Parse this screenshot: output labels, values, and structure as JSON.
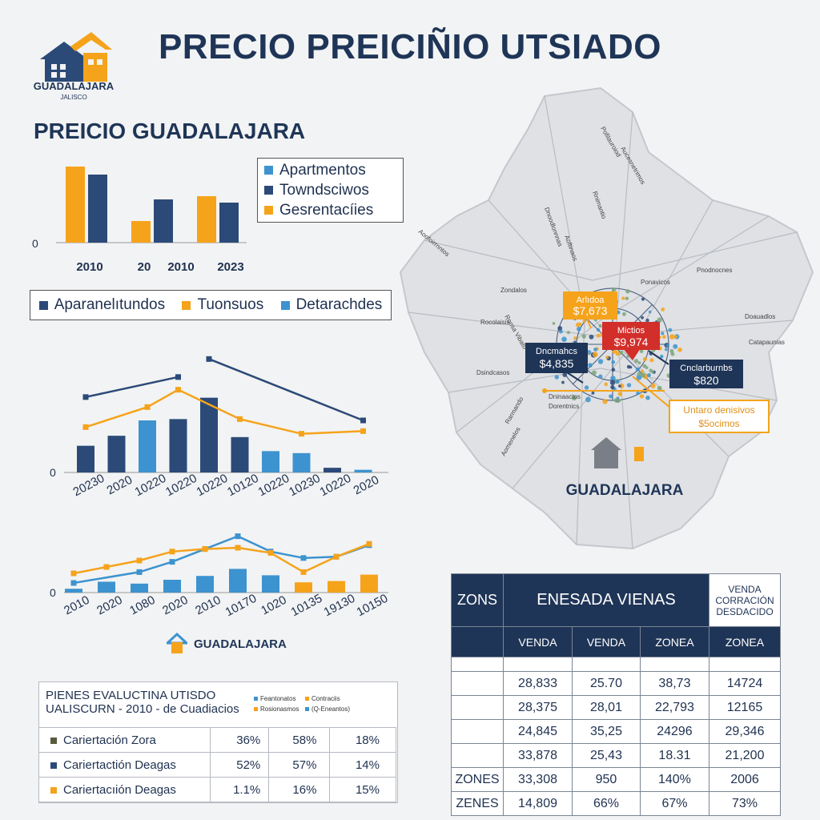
{
  "header": {
    "title": "PRECIO PREICIÑIO UTSIADO"
  },
  "logo": {
    "name": "GUADALAJARA",
    "sub": "JALISCO"
  },
  "subtitle": "PREICIO GUADALAJARA",
  "colors": {
    "navy": "#2b4a78",
    "orange": "#f5a31b",
    "lightblue": "#3d93cf",
    "red": "#d22e2a"
  },
  "legend1": [
    {
      "label": "Apartmentos",
      "color": "#3d93cf"
    },
    {
      "label": "Towndsciwos",
      "color": "#2b4a78"
    },
    {
      "label": "Gesrentacíies",
      "color": "#f5a31b"
    }
  ],
  "legend2": [
    {
      "label": "Aparanelıtundos",
      "color": "#2b4a78"
    },
    {
      "label": "Tuonsuos",
      "color": "#f5a31b"
    },
    {
      "label": "Detarachdes",
      "color": "#3d93cf"
    }
  ],
  "chart_data": [
    {
      "type": "bar",
      "categories": [
        "2010",
        "20",
        "2010",
        "2023"
      ],
      "series": [
        {
          "name": "Gesrentacíies",
          "color": "#f5a31b",
          "values": [
            95,
            27,
            58,
            null
          ]
        },
        {
          "name": "Towndsciwos",
          "color": "#2b4a78",
          "values": [
            85,
            54,
            50,
            null
          ]
        }
      ],
      "ytick": "0",
      "ylim": [
        0,
        100
      ]
    },
    {
      "type": "bar+line",
      "categories": [
        "20230",
        "2020",
        "10220",
        "10220",
        "10220",
        "10120",
        "10220",
        "10230",
        "10220",
        "2020"
      ],
      "bars": [
        {
          "v": 40,
          "c": "navy"
        },
        {
          "v": 55,
          "c": "navy"
        },
        {
          "v": 78,
          "c": "lightblue"
        },
        {
          "v": 80,
          "c": "navy"
        },
        {
          "v": 112,
          "c": "navy"
        },
        {
          "v": 53,
          "c": "navy"
        },
        {
          "v": 32,
          "c": "lightblue"
        },
        {
          "v": 29,
          "c": "lightblue"
        },
        {
          "v": 7,
          "c": "navy"
        },
        {
          "v": 4,
          "c": "lightblue"
        }
      ],
      "series": [
        {
          "name": "Aparanelıtundos",
          "color": "#2b4a78",
          "points": [
            [
              0,
              113
            ],
            [
              3,
              143
            ]
          ]
        },
        {
          "name": "Aparanelıtundos",
          "color": "#2b4a78",
          "points": [
            [
              4,
              170
            ],
            [
              9,
              78
            ]
          ]
        },
        {
          "name": "Tuonsuos",
          "color": "#f5a31b",
          "points": [
            [
              0,
              68
            ],
            [
              2,
              98
            ],
            [
              3,
              124
            ],
            [
              5,
              80
            ],
            [
              7,
              58
            ],
            [
              9,
              62
            ]
          ]
        }
      ],
      "ytick": "0",
      "ylim": [
        0,
        180
      ]
    },
    {
      "type": "bar+line",
      "categories": [
        "2010",
        "2020",
        "1080",
        "2020",
        "2010",
        "10170",
        "1020",
        "10135",
        "19130",
        "10150"
      ],
      "bars": [
        {
          "v": 6,
          "c": "lightblue"
        },
        {
          "v": 17,
          "c": "lightblue"
        },
        {
          "v": 14,
          "c": "lightblue"
        },
        {
          "v": 20,
          "c": "lightblue"
        },
        {
          "v": 26,
          "c": "lightblue"
        },
        {
          "v": 37,
          "c": "lightblue"
        },
        {
          "v": 27,
          "c": "lightblue"
        },
        {
          "v": 16,
          "c": "orange"
        },
        {
          "v": 18,
          "c": "orange"
        },
        {
          "v": 28,
          "c": "orange"
        }
      ],
      "series": [
        {
          "name": "Detarachdes",
          "color": "#3d93cf",
          "points": [
            [
              0,
              15
            ],
            [
              2,
              32
            ],
            [
              3,
              48
            ],
            [
              4,
              68
            ],
            [
              5,
              88
            ],
            [
              6,
              64
            ],
            [
              7,
              54
            ],
            [
              8,
              56
            ],
            [
              9,
              74
            ]
          ]
        },
        {
          "name": "Tuonsuos",
          "color": "#f5a31b",
          "points": [
            [
              0,
              30
            ],
            [
              1,
              40
            ],
            [
              2,
              50
            ],
            [
              3,
              64
            ],
            [
              4,
              68
            ],
            [
              5,
              70
            ],
            [
              6,
              62
            ],
            [
              7,
              32
            ],
            [
              8,
              56
            ],
            [
              9,
              76
            ]
          ]
        }
      ],
      "ytick": "0",
      "ylim": [
        0,
        100
      ]
    },
    {
      "type": "table",
      "title": "PIENES EVALUCTINA UTISDO",
      "subtitle": "UALISCURN - 2010 - de Cuadiacios",
      "mini_legend": [
        "Feantonatos",
        "Contraciis",
        "Rosionasmos",
        "(Q-Eneantos)"
      ],
      "rows": [
        {
          "label": "Cariertación Zora",
          "values": [
            "36%",
            "58%",
            "18%"
          ]
        },
        {
          "label": "Cariertactión Deagas",
          "values": [
            "52%",
            "57%",
            "14%"
          ]
        },
        {
          "label": "Cariertacıión Deagas",
          "values": [
            "1.1%",
            "16%",
            "15%"
          ]
        }
      ]
    },
    {
      "type": "table",
      "headers": [
        "ZONS",
        "ENESADA VIENAS",
        "VENDA CORRACIÓN DESDACIDO"
      ],
      "subheaders": [
        "",
        "VENDA",
        "VENDA",
        "ZONEA",
        "ZONEA"
      ],
      "rows": [
        [
          "",
          "",
          "",
          "",
          ""
        ],
        [
          "",
          "28,833",
          "25.70",
          "38,73",
          "14724"
        ],
        [
          "",
          "28,375",
          "28,01",
          "22,793",
          "12165"
        ],
        [
          "",
          "24,845",
          "35,25",
          "24296",
          "29,346"
        ],
        [
          "",
          "33,878",
          "25,43",
          "18.31",
          "21,200"
        ],
        [
          "ZONES",
          "33,308",
          "950",
          "140%",
          "2006"
        ],
        [
          "ZENES",
          "14,809",
          "66%",
          "67%",
          "73%"
        ]
      ]
    }
  ],
  "map": {
    "city_label": "GUADALAJARA",
    "callouts": [
      {
        "name": "Arlıdoa",
        "price": "$7,673"
      },
      {
        "name": "Mictios",
        "price": "$9,974"
      },
      {
        "name": "Dncmahcs",
        "price": "$4,835"
      },
      {
        "name": "Cnclarburnbs",
        "price": "$820"
      },
      {
        "name": "Untaro denisivos",
        "price": "$5ocimos"
      }
    ],
    "labels": [
      "Pofilauroiod",
      "Aucesnetrimos",
      "Rnimantio",
      "Aoftinaos",
      "Aoofoirrnntos",
      "Pnodnocnes",
      "Ponavicos",
      "Doauadlos",
      "Catapaunias",
      "Rocolaisis",
      "Zondalos",
      "Ronsa Vibato",
      "Dsindcasos",
      "Dninaactos",
      "Dorentnics",
      "Aomenelos",
      "Dnoodlonnnas",
      "Rarmando"
    ]
  },
  "footer": {
    "brand": "GUADALAJARA"
  }
}
